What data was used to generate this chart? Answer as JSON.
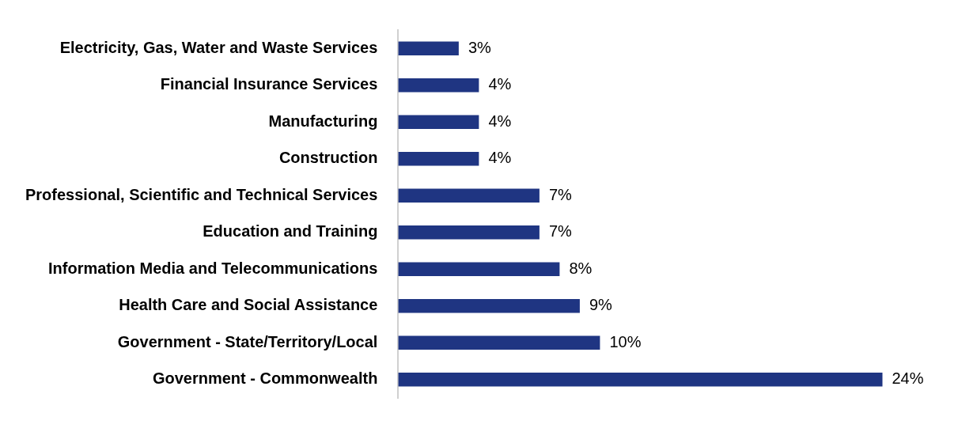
{
  "chart_data": {
    "type": "bar",
    "orientation": "horizontal",
    "categories": [
      "Electricity, Gas, Water and Waste Services",
      "Financial Insurance Services",
      "Manufacturing",
      "Construction",
      "Professional, Scientific and Technical Services",
      "Education and Training",
      "Information Media and Telecommunications",
      "Health Care and Social Assistance",
      "Government - State/Territory/Local",
      "Government - Commonwealth"
    ],
    "values": [
      3,
      4,
      4,
      4,
      7,
      7,
      8,
      9,
      10,
      24
    ],
    "value_labels": [
      "3%",
      "4%",
      "4%",
      "4%",
      "7%",
      "7%",
      "8%",
      "9%",
      "10%",
      "24%"
    ],
    "color": "#1f3582"
  }
}
